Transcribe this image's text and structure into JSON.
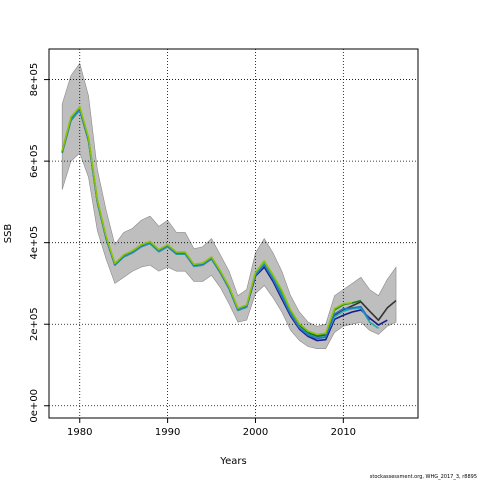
{
  "chart_data": {
    "type": "line",
    "title": "",
    "xlabel": "Years",
    "ylabel": "SSB",
    "xlim": [
      1976.5,
      2018.5
    ],
    "ylim": [
      -30000,
      875000
    ],
    "x_ticks": [
      1980,
      1990,
      2000,
      2010
    ],
    "x_tick_labels": [
      "1980",
      "1990",
      "2000",
      "2010"
    ],
    "y_ticks": [
      0,
      200000,
      400000,
      600000,
      800000
    ],
    "y_tick_labels": [
      "0e+00",
      "2e+05",
      "4e+05",
      "6e+05",
      "8e+05"
    ],
    "grid": true,
    "legend": "none",
    "footer": "stockassessment.org, WHG_2017_3, r8895",
    "band": {
      "color": "#bebebe",
      "x": [
        1978,
        1979,
        1980,
        1981,
        1982,
        1983,
        1984,
        1985,
        1986,
        1987,
        1988,
        1989,
        1990,
        1991,
        1992,
        1993,
        1994,
        1995,
        1996,
        1997,
        1998,
        1999,
        2000,
        2001,
        2002,
        2003,
        2004,
        2005,
        2006,
        2007,
        2008,
        2009,
        2010,
        2011,
        2012,
        2013,
        2014,
        2015,
        2016
      ],
      "upper": [
        740000,
        810000,
        840000,
        760000,
        580000,
        480000,
        395000,
        425000,
        435000,
        455000,
        465000,
        440000,
        455000,
        425000,
        425000,
        385000,
        390000,
        410000,
        370000,
        330000,
        270000,
        285000,
        375000,
        410000,
        375000,
        330000,
        270000,
        230000,
        205000,
        195000,
        200000,
        270000,
        285000,
        300000,
        315000,
        285000,
        270000,
        310000,
        340000
      ],
      "lower": [
        530000,
        600000,
        620000,
        560000,
        430000,
        360000,
        300000,
        315000,
        330000,
        340000,
        345000,
        330000,
        340000,
        330000,
        330000,
        305000,
        305000,
        320000,
        290000,
        250000,
        205000,
        210000,
        275000,
        295000,
        265000,
        230000,
        185000,
        160000,
        145000,
        140000,
        140000,
        180000,
        195000,
        200000,
        205000,
        185000,
        175000,
        195000,
        205000
      ]
    },
    "series": [
      {
        "color": "#333333",
        "x": [
          1978,
          1979,
          1980,
          1981,
          1982,
          1983,
          1984,
          1985,
          1986,
          1987,
          1988,
          1989,
          1990,
          1991,
          1992,
          1993,
          1994,
          1995,
          1996,
          1997,
          1998,
          1999,
          2000,
          2001,
          2002,
          2003,
          2004,
          2005,
          2006,
          2007,
          2008,
          2009,
          2010,
          2011,
          2012,
          2013,
          2014,
          2015,
          2016
        ],
        "values": [
          620000,
          700000,
          725000,
          650000,
          500000,
          410000,
          345000,
          365000,
          375000,
          390000,
          398000,
          378000,
          390000,
          372000,
          372000,
          342000,
          345000,
          360000,
          326000,
          287000,
          234000,
          242000,
          320000,
          348000,
          315000,
          278000,
          230000,
          196000,
          178000,
          170000,
          172000,
          222000,
          235000,
          245000,
          255000,
          232000,
          210000,
          240000,
          258000
        ]
      },
      {
        "color": "#1a1a8c",
        "x": [
          1978,
          1979,
          1980,
          1981,
          1982,
          1983,
          1984,
          1985,
          1986,
          1987,
          1988,
          1989,
          1990,
          1991,
          1992,
          1993,
          1994,
          1995,
          1996,
          1997,
          1998,
          1999,
          2000,
          2001,
          2002,
          2003,
          2004,
          2005,
          2006,
          2007,
          2008,
          2009,
          2010,
          2011,
          2012,
          2013,
          2014,
          2015
        ],
        "values": [
          622000,
          702000,
          726000,
          652000,
          501000,
          411000,
          346000,
          366000,
          376000,
          391000,
          399000,
          379000,
          391000,
          373000,
          373000,
          343000,
          346000,
          361000,
          327000,
          288000,
          235000,
          243000,
          318000,
          340000,
          305000,
          262000,
          220000,
          188000,
          170000,
          160000,
          162000,
          212000,
          222000,
          230000,
          235000,
          215000,
          198000,
          210000
        ]
      },
      {
        "color": "#1b7e1b",
        "x": [
          1978,
          1979,
          1980,
          1981,
          1982,
          1983,
          1984,
          1985,
          1986,
          1987,
          1988,
          1989,
          1990,
          1991,
          1992,
          1993,
          1994,
          1995,
          1996,
          1997,
          1998,
          1999,
          2000,
          2001,
          2002,
          2003,
          2004,
          2005,
          2006,
          2007,
          2008,
          2009,
          2010,
          2011,
          2012
        ],
        "values": [
          624000,
          706000,
          730000,
          655000,
          503000,
          413000,
          347000,
          368000,
          378000,
          393000,
          401000,
          381000,
          393000,
          375000,
          375000,
          345000,
          348000,
          363000,
          329000,
          290000,
          237000,
          245000,
          325000,
          352000,
          318000,
          280000,
          232000,
          198000,
          180000,
          172000,
          175000,
          235000,
          248000,
          252000,
          258000
        ]
      },
      {
        "color": "#20b2aa",
        "x": [
          1978,
          1979,
          1980,
          1981,
          1982,
          1983,
          1984,
          1985,
          1986,
          1987,
          1988,
          1989,
          1990,
          1991,
          1992,
          1993,
          1994,
          1995,
          1996,
          1997,
          1998,
          1999,
          2000,
          2001,
          2002,
          2003,
          2004,
          2005,
          2006,
          2007,
          2008,
          2009,
          2010,
          2011,
          2012,
          2013,
          2014
        ],
        "values": [
          621000,
          701000,
          725000,
          651000,
          500000,
          410000,
          345000,
          365000,
          375000,
          390000,
          398000,
          378000,
          390000,
          372000,
          372000,
          342000,
          345000,
          360000,
          326000,
          287000,
          234000,
          242000,
          322000,
          350000,
          315000,
          272000,
          226000,
          193000,
          175000,
          167000,
          170000,
          218000,
          232000,
          238000,
          240000,
          205000,
          190000
        ]
      },
      {
        "color": "#2f6fc4",
        "x": [
          1978,
          1979,
          1980,
          1981,
          1982,
          1983,
          1984,
          1985,
          1986,
          1987,
          1988,
          1989,
          1990,
          1991,
          1992,
          1993,
          1994,
          1995,
          1996,
          1997,
          1998,
          1999,
          2000,
          2001,
          2002,
          2003,
          2004,
          2005,
          2006,
          2007,
          2008,
          2009,
          2010,
          2011,
          2012,
          2013
        ],
        "values": [
          623000,
          704000,
          728000,
          654000,
          502000,
          412000,
          346000,
          367000,
          377000,
          392000,
          400000,
          380000,
          392000,
          374000,
          374000,
          344000,
          347000,
          362000,
          328000,
          289000,
          236000,
          244000,
          320000,
          345000,
          310000,
          268000,
          224000,
          191000,
          173000,
          165000,
          168000,
          225000,
          238000,
          240000,
          243000,
          210000
        ]
      },
      {
        "color": "#8bc400",
        "x": [
          1978,
          1979,
          1980,
          1981,
          1982,
          1983,
          1984,
          1985,
          1986,
          1987,
          1988,
          1989,
          1990,
          1991,
          1992,
          1993,
          1994,
          1995,
          1996,
          1997,
          1998,
          1999,
          2000,
          2001,
          2002,
          2003,
          2004,
          2005,
          2006,
          2007,
          2008,
          2009,
          2010,
          2011
        ],
        "values": [
          625000,
          708000,
          733000,
          657000,
          505000,
          415000,
          349000,
          370000,
          380000,
          395000,
          403000,
          383000,
          395000,
          377000,
          377000,
          347000,
          350000,
          365000,
          331000,
          292000,
          239000,
          247000,
          327000,
          355000,
          321000,
          283000,
          235000,
          201000,
          183000,
          175000,
          178000,
          238000,
          250000,
          253000
        ]
      }
    ]
  }
}
